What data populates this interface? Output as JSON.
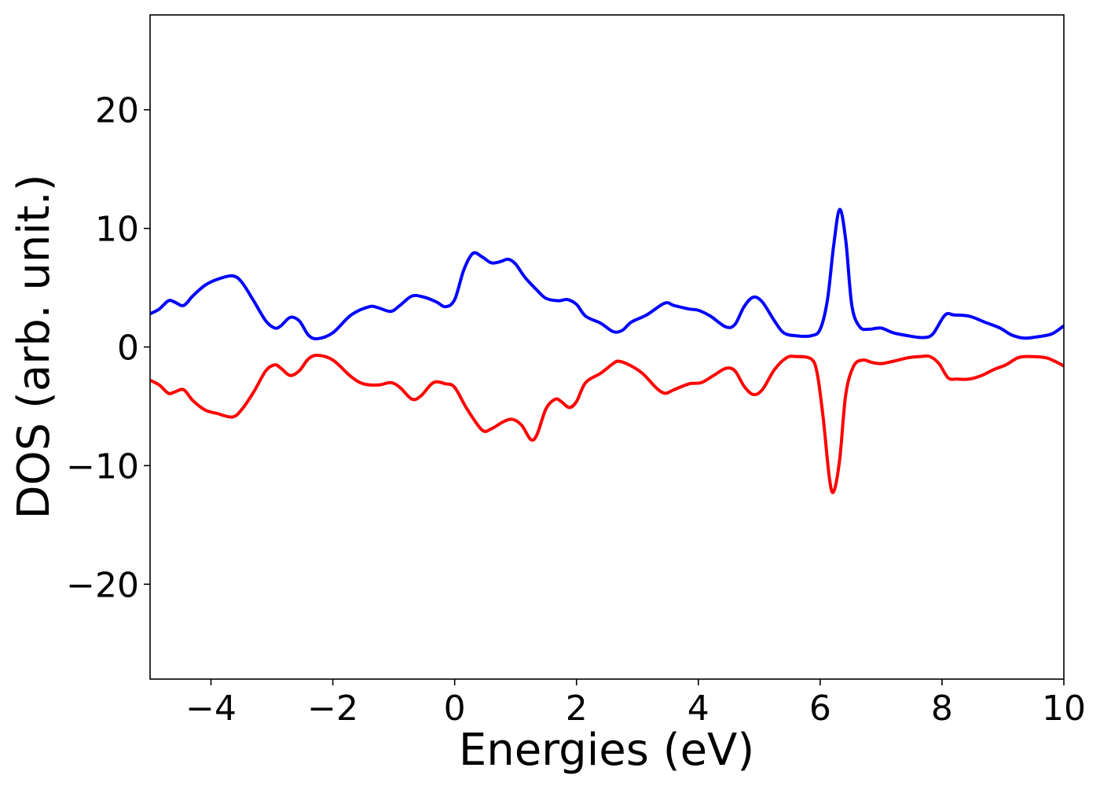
{
  "chart_data": {
    "type": "line",
    "title": "",
    "xlabel": "Energies (eV)",
    "ylabel": "DOS (arb. unit.)",
    "xlim": [
      -5,
      10
    ],
    "ylim": [
      -28,
      28
    ],
    "xticks": [
      -4,
      -2,
      0,
      2,
      4,
      6,
      8,
      10
    ],
    "xtick_labels": [
      "−4",
      "−2",
      "0",
      "2",
      "4",
      "6",
      "8",
      "10"
    ],
    "yticks": [
      -20,
      -10,
      0,
      10,
      20
    ],
    "ytick_labels": [
      "−20",
      "−10",
      "0",
      "10",
      "20"
    ],
    "grid": false,
    "legend": "none",
    "series": [
      {
        "color": "#0000ff",
        "points": [
          [
            -5.0,
            2.8
          ],
          [
            -4.85,
            3.2
          ],
          [
            -4.7,
            3.9
          ],
          [
            -4.6,
            3.8
          ],
          [
            -4.45,
            3.5
          ],
          [
            -4.3,
            4.3
          ],
          [
            -4.1,
            5.2
          ],
          [
            -3.9,
            5.7
          ],
          [
            -3.65,
            6.0
          ],
          [
            -3.5,
            5.5
          ],
          [
            -3.3,
            3.9
          ],
          [
            -3.1,
            2.2
          ],
          [
            -2.95,
            1.6
          ],
          [
            -2.85,
            1.8
          ],
          [
            -2.7,
            2.5
          ],
          [
            -2.55,
            2.2
          ],
          [
            -2.4,
            1.0
          ],
          [
            -2.25,
            0.7
          ],
          [
            -2.0,
            1.2
          ],
          [
            -1.7,
            2.7
          ],
          [
            -1.4,
            3.4
          ],
          [
            -1.25,
            3.3
          ],
          [
            -1.05,
            3.0
          ],
          [
            -0.9,
            3.5
          ],
          [
            -0.7,
            4.3
          ],
          [
            -0.5,
            4.2
          ],
          [
            -0.3,
            3.8
          ],
          [
            -0.15,
            3.4
          ],
          [
            0.0,
            4.0
          ],
          [
            0.15,
            6.5
          ],
          [
            0.3,
            7.9
          ],
          [
            0.45,
            7.6
          ],
          [
            0.6,
            7.1
          ],
          [
            0.75,
            7.2
          ],
          [
            0.88,
            7.4
          ],
          [
            1.0,
            7.0
          ],
          [
            1.15,
            5.9
          ],
          [
            1.35,
            4.8
          ],
          [
            1.5,
            4.1
          ],
          [
            1.7,
            3.9
          ],
          [
            1.85,
            4.0
          ],
          [
            2.0,
            3.6
          ],
          [
            2.15,
            2.6
          ],
          [
            2.4,
            2.0
          ],
          [
            2.6,
            1.3
          ],
          [
            2.75,
            1.4
          ],
          [
            2.9,
            2.1
          ],
          [
            3.15,
            2.7
          ],
          [
            3.45,
            3.7
          ],
          [
            3.6,
            3.5
          ],
          [
            3.85,
            3.2
          ],
          [
            4.0,
            3.1
          ],
          [
            4.2,
            2.6
          ],
          [
            4.45,
            1.7
          ],
          [
            4.6,
            1.9
          ],
          [
            4.75,
            3.4
          ],
          [
            4.9,
            4.2
          ],
          [
            5.05,
            3.8
          ],
          [
            5.25,
            2.2
          ],
          [
            5.4,
            1.2
          ],
          [
            5.6,
            0.95
          ],
          [
            5.85,
            0.95
          ],
          [
            6.0,
            1.5
          ],
          [
            6.12,
            4.0
          ],
          [
            6.22,
            8.5
          ],
          [
            6.32,
            11.6
          ],
          [
            6.42,
            9.0
          ],
          [
            6.52,
            3.5
          ],
          [
            6.65,
            1.7
          ],
          [
            6.8,
            1.5
          ],
          [
            7.0,
            1.6
          ],
          [
            7.2,
            1.2
          ],
          [
            7.5,
            0.9
          ],
          [
            7.7,
            0.8
          ],
          [
            7.85,
            1.1
          ],
          [
            8.05,
            2.7
          ],
          [
            8.2,
            2.7
          ],
          [
            8.45,
            2.6
          ],
          [
            8.7,
            2.1
          ],
          [
            8.95,
            1.6
          ],
          [
            9.15,
            1.0
          ],
          [
            9.35,
            0.75
          ],
          [
            9.55,
            0.85
          ],
          [
            9.8,
            1.1
          ],
          [
            10.0,
            1.8
          ]
        ]
      },
      {
        "color": "#ff0000",
        "points": [
          [
            -5.0,
            -2.8
          ],
          [
            -4.85,
            -3.2
          ],
          [
            -4.7,
            -3.9
          ],
          [
            -4.6,
            -3.8
          ],
          [
            -4.45,
            -3.6
          ],
          [
            -4.3,
            -4.5
          ],
          [
            -4.1,
            -5.3
          ],
          [
            -3.9,
            -5.6
          ],
          [
            -3.65,
            -5.9
          ],
          [
            -3.5,
            -5.3
          ],
          [
            -3.3,
            -3.8
          ],
          [
            -3.1,
            -2.0
          ],
          [
            -2.95,
            -1.5
          ],
          [
            -2.85,
            -1.8
          ],
          [
            -2.7,
            -2.4
          ],
          [
            -2.55,
            -2.0
          ],
          [
            -2.4,
            -1.0
          ],
          [
            -2.25,
            -0.7
          ],
          [
            -2.0,
            -1.1
          ],
          [
            -1.7,
            -2.5
          ],
          [
            -1.5,
            -3.1
          ],
          [
            -1.25,
            -3.2
          ],
          [
            -1.05,
            -3.0
          ],
          [
            -0.9,
            -3.4
          ],
          [
            -0.7,
            -4.4
          ],
          [
            -0.55,
            -4.1
          ],
          [
            -0.35,
            -3.0
          ],
          [
            -0.15,
            -3.1
          ],
          [
            0.0,
            -3.4
          ],
          [
            0.2,
            -5.2
          ],
          [
            0.45,
            -7.0
          ],
          [
            0.6,
            -6.9
          ],
          [
            0.8,
            -6.3
          ],
          [
            0.95,
            -6.1
          ],
          [
            1.1,
            -6.6
          ],
          [
            1.25,
            -7.8
          ],
          [
            1.35,
            -7.4
          ],
          [
            1.5,
            -5.2
          ],
          [
            1.65,
            -4.4
          ],
          [
            1.75,
            -4.6
          ],
          [
            1.88,
            -5.1
          ],
          [
            2.0,
            -4.6
          ],
          [
            2.15,
            -3.0
          ],
          [
            2.4,
            -2.2
          ],
          [
            2.6,
            -1.4
          ],
          [
            2.7,
            -1.2
          ],
          [
            2.9,
            -1.6
          ],
          [
            3.1,
            -2.3
          ],
          [
            3.3,
            -3.4
          ],
          [
            3.45,
            -3.9
          ],
          [
            3.6,
            -3.6
          ],
          [
            3.85,
            -3.1
          ],
          [
            4.05,
            -3.0
          ],
          [
            4.25,
            -2.4
          ],
          [
            4.45,
            -1.8
          ],
          [
            4.6,
            -2.0
          ],
          [
            4.75,
            -3.3
          ],
          [
            4.9,
            -4.0
          ],
          [
            5.05,
            -3.6
          ],
          [
            5.25,
            -1.9
          ],
          [
            5.45,
            -0.9
          ],
          [
            5.6,
            -0.8
          ],
          [
            5.85,
            -1.0
          ],
          [
            5.95,
            -2.2
          ],
          [
            6.05,
            -6.0
          ],
          [
            6.15,
            -11.0
          ],
          [
            6.22,
            -12.2
          ],
          [
            6.32,
            -9.5
          ],
          [
            6.42,
            -4.0
          ],
          [
            6.55,
            -1.6
          ],
          [
            6.7,
            -1.1
          ],
          [
            6.85,
            -1.3
          ],
          [
            7.0,
            -1.4
          ],
          [
            7.2,
            -1.2
          ],
          [
            7.45,
            -0.9
          ],
          [
            7.65,
            -0.8
          ],
          [
            7.8,
            -0.8
          ],
          [
            7.95,
            -1.4
          ],
          [
            8.1,
            -2.6
          ],
          [
            8.25,
            -2.7
          ],
          [
            8.45,
            -2.7
          ],
          [
            8.65,
            -2.4
          ],
          [
            8.85,
            -1.9
          ],
          [
            9.05,
            -1.5
          ],
          [
            9.25,
            -0.9
          ],
          [
            9.45,
            -0.8
          ],
          [
            9.7,
            -0.9
          ],
          [
            9.85,
            -1.2
          ],
          [
            10.0,
            -1.6
          ]
        ]
      }
    ]
  }
}
